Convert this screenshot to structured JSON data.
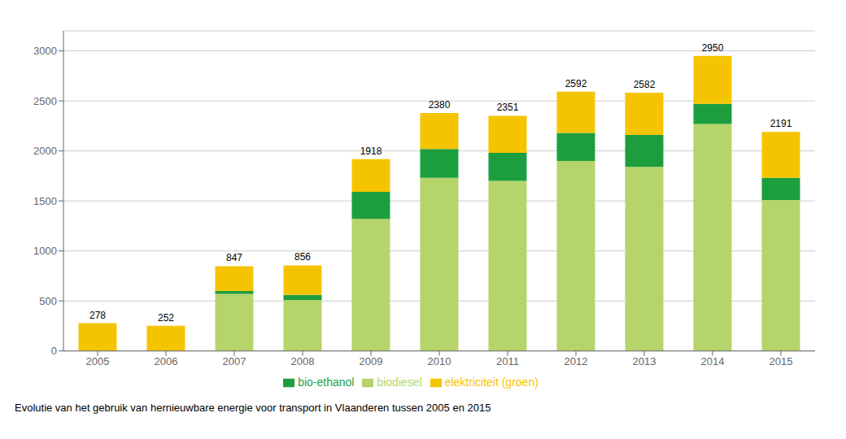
{
  "chart_data": {
    "type": "bar",
    "title": "Evolutie van het gebruik van hernieuwbare energie voor transport in Vlaanderen tussen 2005 en 2015",
    "categories": [
      "2005",
      "2006",
      "2007",
      "2008",
      "2009",
      "2010",
      "2011",
      "2012",
      "2013",
      "2014",
      "2015"
    ],
    "series": [
      {
        "name": "biodiesel",
        "color": "#b5d46a",
        "values": [
          0,
          0,
          570,
          510,
          1320,
          1730,
          1700,
          1900,
          1840,
          2270,
          1510
        ]
      },
      {
        "name": "bio-ethanol",
        "color": "#1d9e3e",
        "values": [
          0,
          0,
          30,
          50,
          270,
          290,
          280,
          280,
          320,
          200,
          220
        ]
      },
      {
        "name": "elektriciteit (groen)",
        "color": "#f5c400",
        "values": [
          278,
          252,
          247,
          296,
          328,
          360,
          371,
          412,
          422,
          480,
          461
        ]
      }
    ],
    "totals": [
      278,
      252,
      847,
      856,
      1918,
      2380,
      2351,
      2592,
      2582,
      2950,
      2191
    ],
    "stacked": true,
    "ylim": [
      0,
      3200
    ],
    "yticks": [
      0,
      500,
      1000,
      1500,
      2000,
      2500,
      3000
    ],
    "grid": true,
    "legend": "bottom"
  }
}
